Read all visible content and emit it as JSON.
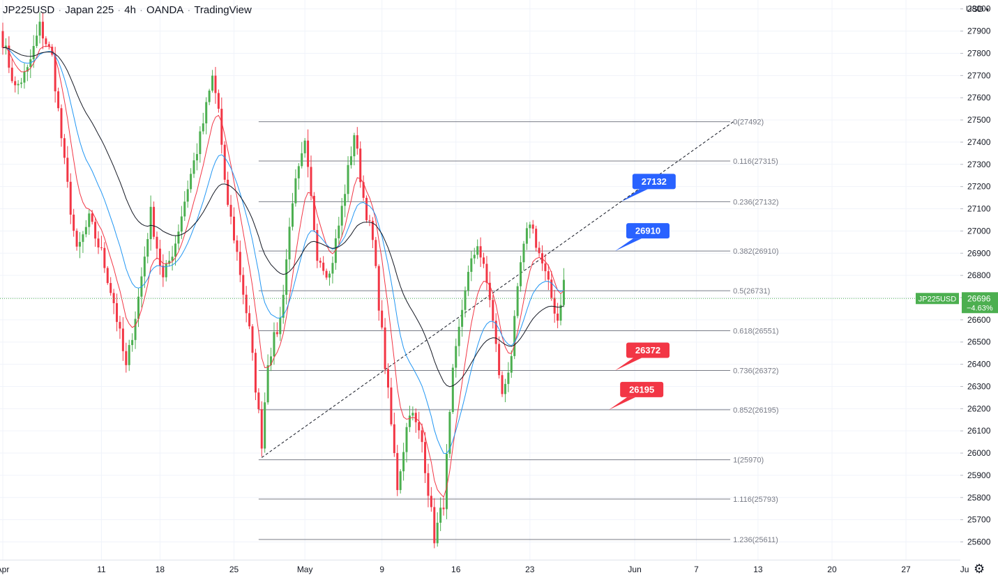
{
  "header": {
    "symbol": "JP225USD",
    "name": "Japan 225",
    "interval": "4h",
    "broker": "OANDA",
    "source": "TradingView"
  },
  "currency": {
    "label": "USD"
  },
  "settings_icon": "gear-icon",
  "colors": {
    "up": "#4caf50",
    "down": "#f23645",
    "ema_fast": "#f23645",
    "ema_mid": "#2196f3",
    "ema_slow": "#131722",
    "fib": "#787b86",
    "current_line": "#4caf50",
    "callout_blue": "#2962ff",
    "callout_red": "#f23645"
  },
  "chart_data": {
    "type": "candlestick",
    "y_axis": {
      "min": 25520,
      "max": 28040,
      "ticks": [
        28000,
        27900,
        27800,
        27700,
        27600,
        27500,
        27400,
        27300,
        27200,
        27100,
        27000,
        26900,
        26800,
        26700,
        26600,
        26500,
        26400,
        26300,
        26200,
        26100,
        26000,
        25900,
        25800,
        25700,
        25600
      ]
    },
    "x_axis": {
      "labels": [
        {
          "label": "Apr",
          "i": 0
        },
        {
          "label": "11",
          "i": 32
        },
        {
          "label": "18",
          "i": 51
        },
        {
          "label": "25",
          "i": 75
        },
        {
          "label": "May",
          "i": 98
        },
        {
          "label": "9",
          "i": 123
        },
        {
          "label": "16",
          "i": 147
        },
        {
          "label": "23",
          "i": 171
        },
        {
          "label": "Jun",
          "i": 205
        },
        {
          "label": "7",
          "i": 225
        },
        {
          "label": "13",
          "i": 245
        },
        {
          "label": "20",
          "i": 269
        },
        {
          "label": "27",
          "i": 293
        },
        {
          "label": "Ju",
          "i": 312
        }
      ]
    },
    "last_price": {
      "symbol": "JP225USD",
      "value": "26696",
      "change": "−4.63%",
      "price": 26696
    },
    "fibonacci": [
      {
        "label": "0(27492)",
        "price": 27492
      },
      {
        "label": "0.116(27315)",
        "price": 27315
      },
      {
        "label": "0.236(27132)",
        "price": 27132
      },
      {
        "label": "0.382(26910)",
        "price": 26910
      },
      {
        "label": "0.5(26731)",
        "price": 26731
      },
      {
        "label": "0.618(26551)",
        "price": 26551
      },
      {
        "label": "0.736(26372)",
        "price": 26372
      },
      {
        "label": "0.852(26195)",
        "price": 26195
      },
      {
        "label": "1(25970)",
        "price": 25970
      },
      {
        "label": "1.116(25793)",
        "price": 25793
      },
      {
        "label": "1.236(25611)",
        "price": 25611
      }
    ],
    "trendline": {
      "from": {
        "i": 84,
        "price": 25980
      },
      "to": {
        "i": 237,
        "price": 27492
      }
    },
    "callouts": [
      {
        "text": "27132",
        "color": "blue",
        "i": 202,
        "price": 27132
      },
      {
        "text": "26910",
        "color": "blue",
        "i": 200,
        "price": 26910
      },
      {
        "text": "26372",
        "color": "red",
        "i": 200,
        "price": 26372
      },
      {
        "text": "26195",
        "color": "red",
        "i": 198,
        "price": 26195
      }
    ],
    "anchors": [
      {
        "i": 0,
        "price": 27860
      },
      {
        "i": 4,
        "price": 27640
      },
      {
        "i": 8,
        "price": 27720
      },
      {
        "i": 12,
        "price": 27920
      },
      {
        "i": 16,
        "price": 27780
      },
      {
        "i": 20,
        "price": 27300
      },
      {
        "i": 24,
        "price": 26900
      },
      {
        "i": 28,
        "price": 27050
      },
      {
        "i": 32,
        "price": 26900
      },
      {
        "i": 36,
        "price": 26680
      },
      {
        "i": 40,
        "price": 26380
      },
      {
        "i": 44,
        "price": 26700
      },
      {
        "i": 48,
        "price": 27080
      },
      {
        "i": 52,
        "price": 26780
      },
      {
        "i": 56,
        "price": 26950
      },
      {
        "i": 60,
        "price": 27200
      },
      {
        "i": 64,
        "price": 27420
      },
      {
        "i": 68,
        "price": 27690
      },
      {
        "i": 70,
        "price": 27550
      },
      {
        "i": 72,
        "price": 27200
      },
      {
        "i": 76,
        "price": 26900
      },
      {
        "i": 80,
        "price": 26550
      },
      {
        "i": 84,
        "price": 26050
      },
      {
        "i": 86,
        "price": 26420
      },
      {
        "i": 90,
        "price": 26600
      },
      {
        "i": 94,
        "price": 27150
      },
      {
        "i": 98,
        "price": 27380
      },
      {
        "i": 102,
        "price": 26900
      },
      {
        "i": 106,
        "price": 26800
      },
      {
        "i": 110,
        "price": 27100
      },
      {
        "i": 114,
        "price": 27440
      },
      {
        "i": 117,
        "price": 27150
      },
      {
        "i": 120,
        "price": 26950
      },
      {
        "i": 124,
        "price": 26400
      },
      {
        "i": 128,
        "price": 25850
      },
      {
        "i": 132,
        "price": 26200
      },
      {
        "i": 136,
        "price": 26050
      },
      {
        "i": 140,
        "price": 25620
      },
      {
        "i": 143,
        "price": 25780
      },
      {
        "i": 146,
        "price": 26350
      },
      {
        "i": 150,
        "price": 26750
      },
      {
        "i": 154,
        "price": 26950
      },
      {
        "i": 158,
        "price": 26700
      },
      {
        "i": 162,
        "price": 26250
      },
      {
        "i": 165,
        "price": 26450
      },
      {
        "i": 168,
        "price": 26850
      },
      {
        "i": 171,
        "price": 27050
      },
      {
        "i": 174,
        "price": 26900
      },
      {
        "i": 177,
        "price": 26750
      },
      {
        "i": 180,
        "price": 26600
      },
      {
        "i": 182,
        "price": 26780
      }
    ]
  }
}
